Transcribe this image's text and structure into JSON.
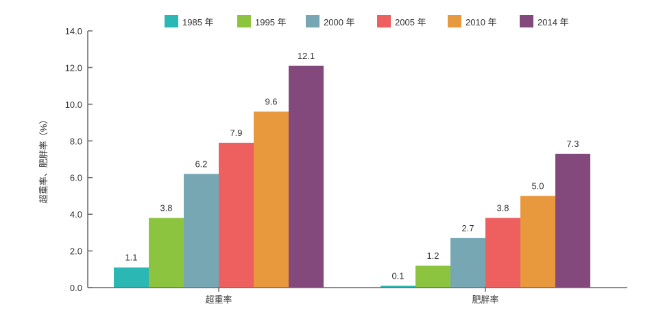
{
  "chart_data": {
    "type": "bar",
    "title": "",
    "xlabel": "",
    "ylabel": "超重率、肥胖率（%）",
    "ylim": [
      0,
      14
    ],
    "yticks": [
      "0.0",
      "2.0",
      "4.0",
      "6.0",
      "8.0",
      "10.0",
      "12.0",
      "14.0"
    ],
    "categories": [
      "超重率",
      "肥胖率"
    ],
    "legend_position": "top",
    "grid": false,
    "series": [
      {
        "name": "1985 年",
        "color": "#2bb7b3",
        "values": [
          1.1,
          0.1
        ],
        "labels": [
          "1.1",
          "0.1"
        ]
      },
      {
        "name": "1995 年",
        "color": "#8cc43f",
        "values": [
          3.8,
          1.2
        ],
        "labels": [
          "3.8",
          "1.2"
        ]
      },
      {
        "name": "2000 年",
        "color": "#76a7b3",
        "values": [
          6.2,
          2.7
        ],
        "labels": [
          "6.2",
          "2.7"
        ]
      },
      {
        "name": "2005 年",
        "color": "#ee5f5f",
        "values": [
          7.9,
          3.8
        ],
        "labels": [
          "7.9",
          "3.8"
        ]
      },
      {
        "name": "2010 年",
        "color": "#e8983d",
        "values": [
          9.6,
          5.0
        ],
        "labels": [
          "9.6",
          "5.0"
        ]
      },
      {
        "name": "2014 年",
        "color": "#83497c",
        "values": [
          12.1,
          7.3
        ],
        "labels": [
          "12.1",
          "7.3"
        ]
      }
    ]
  }
}
